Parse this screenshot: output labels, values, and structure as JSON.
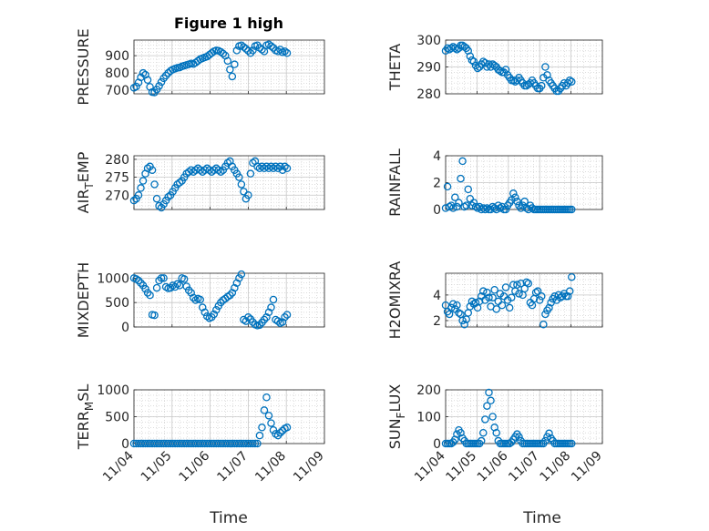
{
  "figure_title": "Figure 1 high",
  "colors": {
    "marker": "#0072BD",
    "axis": "#262626",
    "grid": "#c8c8c8",
    "background": "#ffffff"
  },
  "chart_data": [
    {
      "type": "scatter",
      "title": "Figure 1 high",
      "ylabel": "PRESSURE",
      "ylabel_parts": [
        {
          "t": "PRESSURE"
        }
      ],
      "ylim": [
        680,
        990
      ],
      "yticks": [
        700,
        800,
        900
      ],
      "xlim": [
        0,
        5
      ],
      "xticks": [
        0,
        1,
        2,
        3,
        4,
        5
      ],
      "xticklabels": [
        "11/04",
        "11/05",
        "11/06",
        "11/07",
        "11/08",
        "11/09"
      ],
      "show_xticklabels": false,
      "grid": true,
      "x": [
        0,
        0.06,
        0.12,
        0.18,
        0.24,
        0.3,
        0.36,
        0.42,
        0.48,
        0.54,
        0.6,
        0.66,
        0.72,
        0.78,
        0.84,
        0.9,
        0.96,
        1.02,
        1.08,
        1.14,
        1.2,
        1.26,
        1.32,
        1.38,
        1.44,
        1.5,
        1.56,
        1.62,
        1.68,
        1.74,
        1.8,
        1.86,
        1.92,
        1.98,
        2.04,
        2.1,
        2.16,
        2.22,
        2.28,
        2.34,
        2.4,
        2.46,
        2.52,
        2.58,
        2.64,
        2.7,
        2.76,
        2.82,
        2.88,
        2.94,
        3.0,
        3.06,
        3.12,
        3.18,
        3.24,
        3.3,
        3.36,
        3.42,
        3.48,
        3.54,
        3.6,
        3.66,
        3.72,
        3.78,
        3.84,
        3.9,
        3.96,
        4.02
      ],
      "values": [
        715,
        722,
        745,
        775,
        800,
        790,
        760,
        720,
        690,
        688,
        705,
        725,
        748,
        770,
        785,
        800,
        812,
        820,
        825,
        830,
        832,
        838,
        842,
        846,
        850,
        855,
        852,
        860,
        870,
        880,
        885,
        890,
        895,
        905,
        915,
        925,
        930,
        928,
        922,
        912,
        900,
        870,
        820,
        780,
        850,
        930,
        955,
        960,
        950,
        940,
        928,
        915,
        930,
        955,
        960,
        945,
        935,
        925,
        960,
        965,
        955,
        945,
        930,
        925,
        935,
        920,
        925,
        915
      ]
    },
    {
      "type": "scatter",
      "ylabel": "THETA",
      "ylabel_parts": [
        {
          "t": "THETA"
        }
      ],
      "ylim": [
        280,
        300
      ],
      "yticks": [
        280,
        290,
        300
      ],
      "xlim": [
        0,
        5
      ],
      "xticks": [
        0,
        1,
        2,
        3,
        4,
        5
      ],
      "xticklabels": [
        "11/04",
        "11/05",
        "11/06",
        "11/07",
        "11/08",
        "11/09"
      ],
      "show_xticklabels": false,
      "grid": true,
      "x": [
        0,
        0.06,
        0.12,
        0.18,
        0.24,
        0.3,
        0.36,
        0.42,
        0.48,
        0.54,
        0.6,
        0.66,
        0.72,
        0.78,
        0.84,
        0.9,
        0.96,
        1.02,
        1.08,
        1.14,
        1.2,
        1.26,
        1.32,
        1.38,
        1.44,
        1.5,
        1.56,
        1.62,
        1.68,
        1.74,
        1.8,
        1.86,
        1.92,
        1.98,
        2.04,
        2.1,
        2.16,
        2.22,
        2.28,
        2.34,
        2.4,
        2.46,
        2.52,
        2.58,
        2.64,
        2.7,
        2.76,
        2.82,
        2.88,
        2.94,
        3.0,
        3.06,
        3.12,
        3.18,
        3.24,
        3.3,
        3.36,
        3.42,
        3.48,
        3.54,
        3.6,
        3.66,
        3.72,
        3.78,
        3.84,
        3.9,
        3.96,
        4.02
      ],
      "values": [
        296,
        297,
        296.5,
        297,
        297.5,
        297,
        296.5,
        297,
        298,
        298,
        297.5,
        297,
        296,
        294,
        292.5,
        292,
        290.5,
        289.5,
        290,
        291,
        292,
        291.5,
        290,
        291,
        290,
        291,
        290.5,
        290,
        289,
        288.5,
        288,
        288,
        289,
        287,
        286,
        285,
        285,
        284.5,
        285,
        286,
        285,
        284,
        283,
        283,
        283.5,
        284,
        285,
        284,
        283,
        282,
        282,
        283,
        286,
        290,
        287,
        285,
        284,
        283,
        282,
        281,
        281,
        282,
        283,
        284,
        283,
        284,
        285,
        284.5
      ]
    },
    {
      "type": "scatter",
      "ylabel": "AIR_TEMP",
      "ylabel_parts": [
        {
          "t": "AIR"
        },
        {
          "t": "T",
          "sub": true
        },
        {
          "t": "EMP"
        }
      ],
      "ylim": [
        266,
        281
      ],
      "yticks": [
        270,
        275,
        280
      ],
      "xlim": [
        0,
        5
      ],
      "xticks": [
        0,
        1,
        2,
        3,
        4,
        5
      ],
      "xticklabels": [
        "11/04",
        "11/05",
        "11/06",
        "11/07",
        "11/08",
        "11/09"
      ],
      "show_xticklabels": false,
      "grid": true,
      "x": [
        0,
        0.06,
        0.12,
        0.18,
        0.24,
        0.3,
        0.36,
        0.42,
        0.48,
        0.54,
        0.6,
        0.66,
        0.72,
        0.78,
        0.84,
        0.9,
        0.96,
        1.02,
        1.08,
        1.14,
        1.2,
        1.26,
        1.32,
        1.38,
        1.44,
        1.5,
        1.56,
        1.62,
        1.68,
        1.74,
        1.8,
        1.86,
        1.92,
        1.98,
        2.04,
        2.1,
        2.16,
        2.22,
        2.28,
        2.34,
        2.4,
        2.46,
        2.52,
        2.58,
        2.64,
        2.7,
        2.76,
        2.82,
        2.88,
        2.94,
        3.0,
        3.06,
        3.12,
        3.18,
        3.24,
        3.3,
        3.36,
        3.42,
        3.48,
        3.54,
        3.6,
        3.66,
        3.72,
        3.78,
        3.84,
        3.9,
        3.96,
        4.02
      ],
      "values": [
        268.5,
        269,
        270,
        272,
        274,
        276,
        277.5,
        278,
        277,
        273,
        269,
        267,
        266.5,
        267.5,
        268.5,
        269.5,
        270,
        271,
        272,
        273,
        273.5,
        274,
        275,
        276,
        276.5,
        277,
        276.5,
        277,
        277.5,
        277,
        276.5,
        277,
        277.5,
        277,
        276.5,
        277,
        277.5,
        277,
        276.5,
        277,
        278,
        279,
        279.5,
        278,
        277,
        276,
        275,
        273,
        271,
        269,
        270,
        276,
        279,
        279.5,
        278,
        277.5,
        278,
        277.5,
        278,
        277.5,
        278,
        277.5,
        278,
        277.5,
        278,
        277,
        278,
        277.5
      ]
    },
    {
      "type": "scatter",
      "ylabel": "RAINFALL",
      "ylabel_parts": [
        {
          "t": "RAINFALL"
        }
      ],
      "ylim": [
        0,
        4
      ],
      "yticks": [
        0,
        2,
        4
      ],
      "xlim": [
        0,
        5
      ],
      "xticks": [
        0,
        1,
        2,
        3,
        4,
        5
      ],
      "xticklabels": [
        "11/04",
        "11/05",
        "11/06",
        "11/07",
        "11/08",
        "11/09"
      ],
      "show_xticklabels": false,
      "grid": true,
      "x": [
        0,
        0.06,
        0.12,
        0.18,
        0.24,
        0.3,
        0.36,
        0.42,
        0.48,
        0.54,
        0.6,
        0.66,
        0.72,
        0.78,
        0.84,
        0.9,
        0.96,
        1.02,
        1.08,
        1.14,
        1.2,
        1.26,
        1.32,
        1.38,
        1.44,
        1.5,
        1.56,
        1.62,
        1.68,
        1.74,
        1.8,
        1.86,
        1.92,
        1.98,
        2.04,
        2.1,
        2.16,
        2.22,
        2.28,
        2.34,
        2.4,
        2.46,
        2.52,
        2.58,
        2.64,
        2.7,
        2.76,
        2.82,
        2.88,
        2.94,
        3.0,
        3.06,
        3.12,
        3.18,
        3.24,
        3.3,
        3.36,
        3.42,
        3.48,
        3.54,
        3.6,
        3.66,
        3.72,
        3.78,
        3.84,
        3.9,
        3.96,
        4.02
      ],
      "values": [
        0.1,
        1.7,
        0.2,
        0.3,
        0.1,
        0.9,
        0.2,
        0.5,
        2.3,
        3.6,
        0.2,
        0.3,
        1.5,
        0.8,
        0.3,
        0.5,
        0.2,
        0.1,
        0.2,
        0.0,
        0.1,
        0.0,
        0.1,
        0.0,
        0.0,
        0.2,
        0.1,
        0.0,
        0.3,
        0.1,
        0.2,
        0.0,
        0.0,
        0.3,
        0.5,
        0.7,
        1.2,
        0.9,
        0.6,
        0.3,
        0.1,
        0.3,
        0.6,
        0.1,
        0.0,
        0.3,
        0.1,
        0.0,
        0.0,
        0.0,
        0.0,
        0.0,
        0.0,
        0.0,
        0.0,
        0.0,
        0.0,
        0.0,
        0.0,
        0.0,
        0.0,
        0.0,
        0.0,
        0.0,
        0.0,
        0.0,
        0.0,
        0.0
      ]
    },
    {
      "type": "scatter",
      "ylabel": "MIXDEPTH",
      "ylabel_parts": [
        {
          "t": "MIXDEPTH"
        }
      ],
      "ylim": [
        0,
        1100
      ],
      "yticks": [
        0,
        500,
        1000
      ],
      "xlim": [
        0,
        5
      ],
      "xticks": [
        0,
        1,
        2,
        3,
        4,
        5
      ],
      "xticklabels": [
        "11/04",
        "11/05",
        "11/06",
        "11/07",
        "11/08",
        "11/09"
      ],
      "show_xticklabels": false,
      "grid": true,
      "x": [
        0,
        0.06,
        0.12,
        0.18,
        0.24,
        0.3,
        0.36,
        0.42,
        0.48,
        0.54,
        0.6,
        0.66,
        0.72,
        0.78,
        0.84,
        0.9,
        0.96,
        1.02,
        1.08,
        1.14,
        1.2,
        1.26,
        1.32,
        1.38,
        1.44,
        1.5,
        1.56,
        1.62,
        1.68,
        1.74,
        1.8,
        1.86,
        1.92,
        1.98,
        2.04,
        2.1,
        2.16,
        2.22,
        2.28,
        2.34,
        2.4,
        2.46,
        2.52,
        2.58,
        2.64,
        2.7,
        2.76,
        2.82,
        2.88,
        2.94,
        3.0,
        3.06,
        3.12,
        3.18,
        3.24,
        3.3,
        3.36,
        3.42,
        3.48,
        3.54,
        3.6,
        3.66,
        3.72,
        3.78,
        3.84,
        3.9,
        3.96,
        4.02
      ],
      "values": [
        1000,
        980,
        950,
        900,
        850,
        780,
        700,
        650,
        250,
        240,
        800,
        950,
        1000,
        1000,
        820,
        790,
        800,
        850,
        820,
        880,
        850,
        1000,
        980,
        830,
        750,
        700,
        600,
        550,
        580,
        560,
        400,
        300,
        220,
        180,
        200,
        260,
        350,
        430,
        500,
        550,
        580,
        620,
        650,
        700,
        800,
        900,
        1000,
        1080,
        150,
        120,
        200,
        160,
        100,
        50,
        30,
        40,
        90,
        150,
        200,
        300,
        400,
        560,
        150,
        120,
        80,
        100,
        200,
        250
      ]
    },
    {
      "type": "scatter",
      "ylabel": "H2OMIXRA",
      "ylabel_parts": [
        {
          "t": "H2OMIXRA"
        }
      ],
      "ylim": [
        1.5,
        5.7
      ],
      "yticks": [
        2,
        4
      ],
      "xlim": [
        0,
        5
      ],
      "xticks": [
        0,
        1,
        2,
        3,
        4,
        5
      ],
      "xticklabels": [
        "11/04",
        "11/05",
        "11/06",
        "11/07",
        "11/08",
        "11/09"
      ],
      "show_xticklabels": false,
      "grid": true,
      "x": [
        0,
        0.06,
        0.12,
        0.18,
        0.24,
        0.3,
        0.36,
        0.42,
        0.48,
        0.54,
        0.6,
        0.66,
        0.72,
        0.78,
        0.84,
        0.9,
        0.96,
        1.02,
        1.08,
        1.14,
        1.2,
        1.26,
        1.32,
        1.38,
        1.44,
        1.5,
        1.56,
        1.62,
        1.68,
        1.74,
        1.8,
        1.86,
        1.92,
        1.98,
        2.04,
        2.1,
        2.16,
        2.22,
        2.28,
        2.34,
        2.4,
        2.46,
        2.52,
        2.58,
        2.64,
        2.7,
        2.76,
        2.82,
        2.88,
        2.94,
        3.0,
        3.06,
        3.12,
        3.18,
        3.24,
        3.3,
        3.36,
        3.42,
        3.48,
        3.54,
        3.6,
        3.66,
        3.72,
        3.78,
        3.84,
        3.9,
        3.96,
        4.02
      ],
      "values": [
        3.2,
        2.7,
        2.5,
        3.0,
        3.3,
        2.9,
        3.2,
        2.6,
        2.5,
        2.0,
        1.7,
        2.1,
        2.6,
        3.1,
        3.5,
        3.3,
        3.4,
        3.0,
        3.5,
        3.9,
        4.3,
        3.6,
        4.2,
        3.8,
        3.1,
        3.8,
        4.4,
        2.9,
        3.5,
        4.1,
        3.2,
        3.9,
        4.6,
        3.6,
        3.0,
        3.8,
        4.8,
        4.3,
        4.8,
        4.1,
        4.9,
        4.0,
        4.5,
        5.0,
        4.9,
        3.4,
        3.2,
        3.7,
        4.2,
        4.3,
        3.6,
        3.9,
        1.7,
        2.5,
        2.8,
        3.0,
        3.4,
        3.7,
        3.9,
        3.6,
        4.0,
        3.8,
        3.9,
        4.1,
        3.9,
        3.9,
        4.3,
        5.4
      ]
    },
    {
      "type": "scatter",
      "ylabel": "TERR_MSL",
      "ylabel_parts": [
        {
          "t": "TERR"
        },
        {
          "t": "M",
          "sub": true
        },
        {
          "t": "SL"
        }
      ],
      "ylim": [
        0,
        1000
      ],
      "yticks": [
        0,
        500,
        1000
      ],
      "xlim": [
        0,
        5
      ],
      "xticks": [
        0,
        1,
        2,
        3,
        4,
        5
      ],
      "xticklabels": [
        "11/04",
        "11/05",
        "11/06",
        "11/07",
        "11/08",
        "11/09"
      ],
      "show_xticklabels": true,
      "grid": true,
      "x": [
        0,
        0.06,
        0.12,
        0.18,
        0.24,
        0.3,
        0.36,
        0.42,
        0.48,
        0.54,
        0.6,
        0.66,
        0.72,
        0.78,
        0.84,
        0.9,
        0.96,
        1.02,
        1.08,
        1.14,
        1.2,
        1.26,
        1.32,
        1.38,
        1.44,
        1.5,
        1.56,
        1.62,
        1.68,
        1.74,
        1.8,
        1.86,
        1.92,
        1.98,
        2.04,
        2.1,
        2.16,
        2.22,
        2.28,
        2.34,
        2.4,
        2.46,
        2.52,
        2.58,
        2.64,
        2.7,
        2.76,
        2.82,
        2.88,
        2.94,
        3.0,
        3.06,
        3.12,
        3.18,
        3.24,
        3.3,
        3.36,
        3.42,
        3.48,
        3.54,
        3.6,
        3.66,
        3.72,
        3.78,
        3.84,
        3.9,
        3.96,
        4.02
      ],
      "values": [
        0,
        0,
        0,
        0,
        0,
        0,
        0,
        0,
        0,
        0,
        0,
        0,
        0,
        0,
        0,
        0,
        0,
        0,
        0,
        0,
        0,
        0,
        0,
        0,
        0,
        0,
        0,
        0,
        0,
        0,
        0,
        0,
        0,
        0,
        0,
        0,
        0,
        0,
        0,
        0,
        0,
        0,
        0,
        0,
        0,
        0,
        0,
        0,
        0,
        0,
        0,
        0,
        0,
        0,
        0,
        150,
        300,
        620,
        860,
        520,
        380,
        250,
        180,
        150,
        200,
        240,
        280,
        300
      ]
    },
    {
      "type": "scatter",
      "ylabel": "SUN_FLUX",
      "ylabel_parts": [
        {
          "t": "SUN"
        },
        {
          "t": "F",
          "sub": true
        },
        {
          "t": "LUX"
        }
      ],
      "ylim": [
        0,
        200
      ],
      "yticks": [
        0,
        100,
        200
      ],
      "xlim": [
        0,
        5
      ],
      "xticks": [
        0,
        1,
        2,
        3,
        4,
        5
      ],
      "xticklabels": [
        "11/04",
        "11/05",
        "11/06",
        "11/07",
        "11/08",
        "11/09"
      ],
      "show_xticklabels": true,
      "grid": true,
      "x": [
        0,
        0.06,
        0.12,
        0.18,
        0.24,
        0.3,
        0.36,
        0.42,
        0.48,
        0.54,
        0.6,
        0.66,
        0.72,
        0.78,
        0.84,
        0.9,
        0.96,
        1.02,
        1.08,
        1.14,
        1.2,
        1.26,
        1.32,
        1.38,
        1.44,
        1.5,
        1.56,
        1.62,
        1.68,
        1.74,
        1.8,
        1.86,
        1.92,
        1.98,
        2.04,
        2.1,
        2.16,
        2.22,
        2.28,
        2.34,
        2.4,
        2.46,
        2.52,
        2.58,
        2.64,
        2.7,
        2.76,
        2.82,
        2.88,
        2.94,
        3.0,
        3.06,
        3.12,
        3.18,
        3.24,
        3.3,
        3.36,
        3.42,
        3.48,
        3.54,
        3.6,
        3.66,
        3.72,
        3.78,
        3.84,
        3.9,
        3.96,
        4.02
      ],
      "values": [
        0,
        0,
        0,
        0,
        5,
        15,
        35,
        50,
        40,
        20,
        10,
        0,
        0,
        0,
        0,
        0,
        0,
        0,
        0,
        10,
        40,
        90,
        140,
        190,
        160,
        100,
        60,
        40,
        10,
        0,
        0,
        0,
        0,
        0,
        0,
        5,
        15,
        25,
        35,
        25,
        10,
        0,
        0,
        0,
        0,
        0,
        0,
        0,
        0,
        0,
        0,
        0,
        0,
        10,
        25,
        38,
        20,
        10,
        0,
        0,
        0,
        0,
        0,
        0,
        0,
        0,
        0,
        0
      ]
    }
  ],
  "xlabel": "Time"
}
